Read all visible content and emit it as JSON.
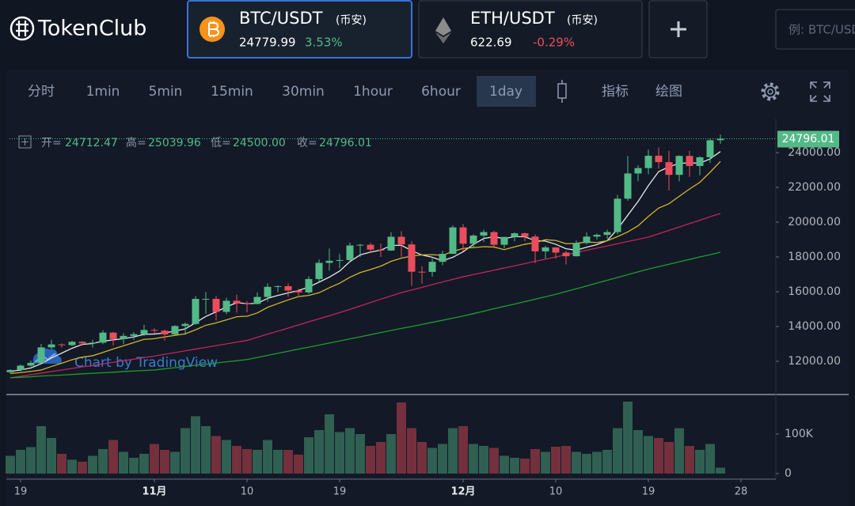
{
  "header": {
    "logo": "TokenClub",
    "tabs": [
      {
        "pair": "BTC/USDT",
        "exchange": "(币安)",
        "price": "24779.99",
        "change": "3.53%"
      },
      {
        "pair": "ETH/USDT",
        "exchange": "(币安)",
        "price": "622.69",
        "change": "-0.29%"
      }
    ],
    "search_placeholder": "例: BTC/USDT"
  },
  "toolbar": {
    "intervals": [
      "分时",
      "1min",
      "5min",
      "15min",
      "30min",
      "1hour",
      "6hour",
      "1day"
    ],
    "indicators": "指标",
    "drawing": "绘图"
  },
  "chart_data": {
    "type": "candlestick",
    "categories": [
      null,
      "19",
      null,
      null,
      null,
      null,
      null,
      null,
      null,
      null,
      null,
      null,
      null,
      null,
      "11月",
      null,
      null,
      null,
      null,
      null,
      null,
      null,
      null,
      "10",
      null,
      null,
      null,
      null,
      null,
      null,
      null,
      null,
      "19",
      null,
      null,
      null,
      null,
      null,
      null,
      null,
      null,
      null,
      null,
      null,
      "12月",
      null,
      null,
      null,
      null,
      null,
      null,
      null,
      null,
      "10",
      null,
      null,
      null,
      null,
      null,
      null,
      null,
      null,
      "19",
      null,
      null,
      null,
      null,
      null,
      null,
      null,
      null,
      "28"
    ],
    "open": [
      11370,
      11500,
      11750,
      11910,
      12800,
      12970,
      12930,
      13120,
      13030,
      13070,
      13650,
      13280,
      13460,
      13560,
      13800,
      13760,
      13550,
      14030,
      14150,
      15590,
      15590,
      14840,
      15480,
      15330,
      15300,
      15700,
      16280,
      16320,
      16070,
      15960,
      16730,
      17660,
      17780,
      17820,
      18660,
      18700,
      18420,
      18370,
      19160,
      18720,
      17150,
      17140,
      17720,
      18180,
      19700,
      18760,
      19230,
      19430,
      18700,
      19150,
      19360,
      19170,
      18320,
      18550,
      18250,
      18040,
      18800,
      19170,
      19270,
      19430,
      21350,
      22800,
      23110,
      23820,
      23450,
      22720,
      23810,
      23230,
      23730,
      24712.47,
      null,
      null
    ],
    "high": [
      11540,
      11820,
      12040,
      13000,
      13240,
      13030,
      13180,
      13160,
      13240,
      13790,
      13680,
      13620,
      13680,
      14100,
      13900,
      13830,
      14070,
      14240,
      15750,
      15980,
      15770,
      15650,
      15840,
      15460,
      15960,
      16480,
      16370,
      16480,
      16170,
      16890,
      17860,
      18480,
      18170,
      18820,
      18750,
      18810,
      18770,
      19420,
      19480,
      18910,
      17460,
      17900,
      18360,
      19810,
      19900,
      19300,
      19570,
      19510,
      19160,
      19420,
      19410,
      19300,
      18640,
      18560,
      18350,
      18950,
      19410,
      19350,
      19570,
      21560,
      23800,
      23280,
      24170,
      24300,
      24100,
      23840,
      24100,
      23790,
      24790,
      25039.96,
      null,
      null
    ],
    "low": [
      11300,
      11420,
      11690,
      11890,
      12690,
      12780,
      12880,
      12950,
      12780,
      12990,
      12900,
      12980,
      13230,
      13460,
      13620,
      13200,
      13520,
      13520,
      14100,
      14730,
      14340,
      14710,
      14800,
      14810,
      15280,
      15430,
      15970,
      15710,
      15780,
      15870,
      16560,
      17210,
      17350,
      17740,
      18000,
      18280,
      18000,
      18350,
      18000,
      16340,
      16460,
      16880,
      17520,
      18170,
      18330,
      18510,
      18860,
      18570,
      18500,
      18900,
      18910,
      17650,
      17900,
      17910,
      17570,
      18020,
      18720,
      19000,
      19050,
      19300,
      21230,
      22350,
      22750,
      23070,
      21820,
      22350,
      22600,
      22700,
      23410,
      24500,
      null,
      null
    ],
    "close": [
      11500,
      11750,
      11910,
      12800,
      12970,
      12930,
      13120,
      13030,
      13070,
      13650,
      13280,
      13460,
      13560,
      13800,
      13760,
      13550,
      14030,
      14150,
      15590,
      15590,
      14840,
      15480,
      15330,
      15300,
      15700,
      16280,
      16320,
      16070,
      15960,
      16730,
      17660,
      17780,
      17820,
      18660,
      18700,
      18420,
      18370,
      19160,
      18720,
      17150,
      17140,
      17720,
      18180,
      19700,
      18760,
      19230,
      19430,
      18700,
      19150,
      19360,
      19170,
      18320,
      18550,
      18250,
      18040,
      18800,
      19170,
      19270,
      19430,
      21350,
      22800,
      23110,
      23820,
      23450,
      22720,
      23810,
      23230,
      23730,
      24710,
      24796.01,
      null,
      null
    ],
    "volume": [
      45000,
      60000,
      67000,
      120000,
      90000,
      50000,
      35000,
      30000,
      45000,
      62000,
      85000,
      55000,
      40000,
      50000,
      75000,
      60000,
      55000,
      115000,
      145000,
      120000,
      95000,
      85000,
      70000,
      62000,
      60000,
      85000,
      60000,
      60000,
      48000,
      92000,
      110000,
      150000,
      105000,
      115000,
      100000,
      70000,
      80000,
      100000,
      180000,
      115000,
      80000,
      65000,
      75000,
      115000,
      120000,
      75000,
      70000,
      65000,
      45000,
      40000,
      38000,
      62000,
      55000,
      68000,
      70000,
      55000,
      50000,
      55000,
      60000,
      115000,
      182000,
      110000,
      95000,
      90000,
      80000,
      115000,
      70000,
      60000,
      75000,
      15000,
      null,
      null
    ],
    "ma": [
      {
        "color": "#e6e6e6",
        "values": [
          11420,
          11500,
          11620,
          11860,
          12190,
          12470,
          12750,
          12970,
          13020,
          13160,
          13230,
          13300,
          13400,
          13550,
          13570,
          13630,
          13740,
          13860,
          14220,
          14580,
          14840,
          15130,
          15370,
          15310,
          15330,
          15620,
          15790,
          15930,
          16070,
          16270,
          16550,
          16840,
          17190,
          17730,
          18120,
          18280,
          18390,
          18660,
          18670,
          18360,
          18110,
          17980,
          17780,
          17980,
          18300,
          18720,
          19060,
          19160,
          19050,
          19170,
          19160,
          18940,
          18910,
          18730,
          18470,
          18390,
          18560,
          18710,
          18940,
          19600,
          20400,
          21190,
          22100,
          22910,
          23180,
          23380,
          23410,
          23390,
          23640,
          24060,
          null,
          null
        ]
      },
      {
        "color": "#d4b52c",
        "values": [
          11300,
          11350,
          11420,
          11500,
          11700,
          11890,
          12090,
          12240,
          12320,
          12510,
          12710,
          12890,
          13080,
          13260,
          13300,
          13400,
          13490,
          13580,
          13810,
          14070,
          14210,
          14380,
          14560,
          14590,
          14780,
          15100,
          15320,
          15530,
          15720,
          15790,
          15940,
          16230,
          16490,
          16830,
          17100,
          17280,
          17470,
          17750,
          17930,
          18050,
          18120,
          18130,
          18090,
          18320,
          18490,
          18540,
          18590,
          18570,
          18420,
          18580,
          18730,
          18830,
          18990,
          18950,
          18760,
          18780,
          18860,
          18830,
          18930,
          19170,
          19440,
          19790,
          20330,
          20810,
          21060,
          21490,
          21910,
          22290,
          22870,
          23490,
          null,
          null
        ]
      },
      {
        "color": "#c2255c",
        "values": [
          11050,
          11140,
          11230,
          11320,
          11410,
          11500,
          11590,
          11680,
          11760,
          11850,
          11940,
          12030,
          12120,
          12210,
          12300,
          12400,
          12500,
          12600,
          12700,
          12800,
          12900,
          13000,
          13100,
          13200,
          13380,
          13560,
          13730,
          13910,
          14090,
          14270,
          14440,
          14620,
          14800,
          14990,
          15180,
          15380,
          15570,
          15760,
          15950,
          16100,
          16250,
          16410,
          16560,
          16710,
          16860,
          16990,
          17110,
          17240,
          17370,
          17490,
          17620,
          17750,
          17870,
          18000,
          18130,
          18250,
          18380,
          18510,
          18630,
          18760,
          18890,
          19010,
          19140,
          19330,
          19530,
          19720,
          19920,
          20110,
          20310,
          20500,
          null,
          null
        ]
      },
      {
        "color": "#1f9d2c",
        "values": [
          11050,
          11080,
          11110,
          11150,
          11180,
          11210,
          11240,
          11280,
          11310,
          11340,
          11370,
          11410,
          11440,
          11470,
          11500,
          11570,
          11630,
          11700,
          11770,
          11830,
          11900,
          11970,
          12030,
          12100,
          12220,
          12340,
          12460,
          12580,
          12700,
          12810,
          12930,
          13050,
          13170,
          13290,
          13410,
          13530,
          13650,
          13770,
          13890,
          14000,
          14120,
          14240,
          14360,
          14480,
          14600,
          14740,
          14880,
          15020,
          15160,
          15290,
          15430,
          15570,
          15710,
          15850,
          16010,
          16170,
          16330,
          16500,
          16660,
          16820,
          16980,
          17140,
          17300,
          17440,
          17580,
          17720,
          17860,
          18000,
          18130,
          18270,
          null,
          null
        ]
      }
    ],
    "up_color": "#53b987",
    "down_color": "#eb4d5c",
    "ylim": [
      10180,
      25955
    ],
    "yticks": [
      {
        "value": 12000,
        "label": "12000.00"
      },
      {
        "value": 14000,
        "label": "14000.00"
      },
      {
        "value": 16000,
        "label": "16000.00"
      },
      {
        "value": 18000,
        "label": "18000.00"
      },
      {
        "value": 20000,
        "label": "20000.00"
      },
      {
        "value": 22000,
        "label": "22000.00"
      },
      {
        "value": 24000,
        "label": "24000.00"
      }
    ],
    "volume_ylim": [
      -14000,
      192000
    ],
    "volume_yticks": [
      0,
      {
        "value": 100000,
        "label": "100K"
      }
    ],
    "legend_keys": [
      "开=",
      "高=",
      "低=",
      "收="
    ],
    "ohlc_labels": {
      "open": "24712.47",
      "high": "25039.96",
      "low": "24500.00",
      "close": "24796.01"
    },
    "last_price_label": "24796.01",
    "watermark": "Chart by TradingView",
    "grid": false
  }
}
